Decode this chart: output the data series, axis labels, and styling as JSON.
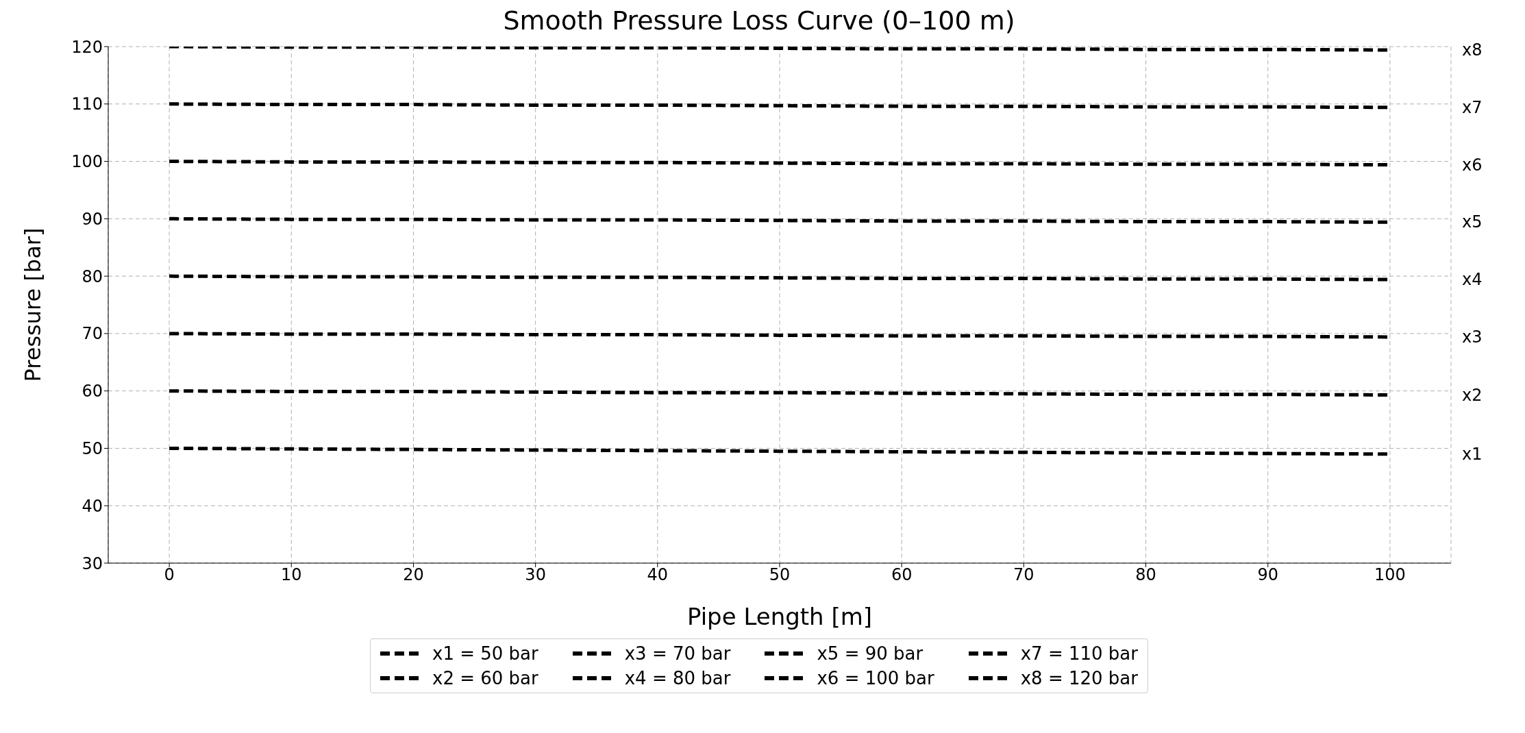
{
  "chart_data": {
    "type": "line",
    "title": "Smooth Pressure Loss Curve (0–100 m)",
    "xlabel": "Pipe Length [m]",
    "ylabel": "Pressure [bar]",
    "x": [
      0,
      10,
      20,
      30,
      40,
      50,
      60,
      70,
      80,
      90,
      100
    ],
    "xlim": [
      -5,
      105
    ],
    "xticks": [
      0,
      10,
      20,
      30,
      40,
      50,
      60,
      70,
      80,
      90,
      100
    ],
    "ylim": [
      30,
      120
    ],
    "yticks": [
      30,
      40,
      50,
      60,
      70,
      80,
      90,
      100,
      110,
      120
    ],
    "grid": true,
    "legend": "bottom",
    "marker": "none",
    "line_style": "dashed",
    "series": [
      {
        "name": "x1 = 50 bar",
        "color": "#000000",
        "values": [
          50,
          49.9,
          49.8,
          49.7,
          49.6,
          49.5,
          49.4,
          49.3,
          49.2,
          49.1,
          49.0
        ]
      },
      {
        "name": "x2 = 60 bar",
        "color": "#000000",
        "values": [
          60,
          59.9,
          59.9,
          59.8,
          59.7,
          59.7,
          59.6,
          59.5,
          59.4,
          59.4,
          59.3
        ]
      },
      {
        "name": "x3 = 70 bar",
        "color": "#000000",
        "values": [
          70,
          69.9,
          69.9,
          69.8,
          69.8,
          69.7,
          69.6,
          69.6,
          69.5,
          69.5,
          69.4
        ]
      },
      {
        "name": "x4 = 80 bar",
        "color": "#000000",
        "values": [
          80,
          79.9,
          79.9,
          79.8,
          79.8,
          79.7,
          79.6,
          79.6,
          79.5,
          79.5,
          79.4
        ]
      },
      {
        "name": "x5 = 90 bar",
        "color": "#000000",
        "values": [
          90,
          89.9,
          89.9,
          89.8,
          89.8,
          89.7,
          89.6,
          89.6,
          89.5,
          89.5,
          89.4
        ]
      },
      {
        "name": "x6 = 100 bar",
        "color": "#000000",
        "values": [
          100,
          99.9,
          99.9,
          99.8,
          99.8,
          99.7,
          99.6,
          99.6,
          99.5,
          99.5,
          99.4
        ]
      },
      {
        "name": "x7 = 110 bar",
        "color": "#000000",
        "values": [
          110,
          109.9,
          109.9,
          109.8,
          109.8,
          109.7,
          109.6,
          109.6,
          109.5,
          109.5,
          109.4
        ]
      },
      {
        "name": "x8 = 120 bar",
        "color": "#000000",
        "values": [
          120,
          119.9,
          119.9,
          119.8,
          119.8,
          119.7,
          119.6,
          119.6,
          119.5,
          119.5,
          119.4
        ]
      }
    ],
    "annotations": [
      "x1",
      "x2",
      "x3",
      "x4",
      "x5",
      "x6",
      "x7",
      "x8"
    ]
  }
}
